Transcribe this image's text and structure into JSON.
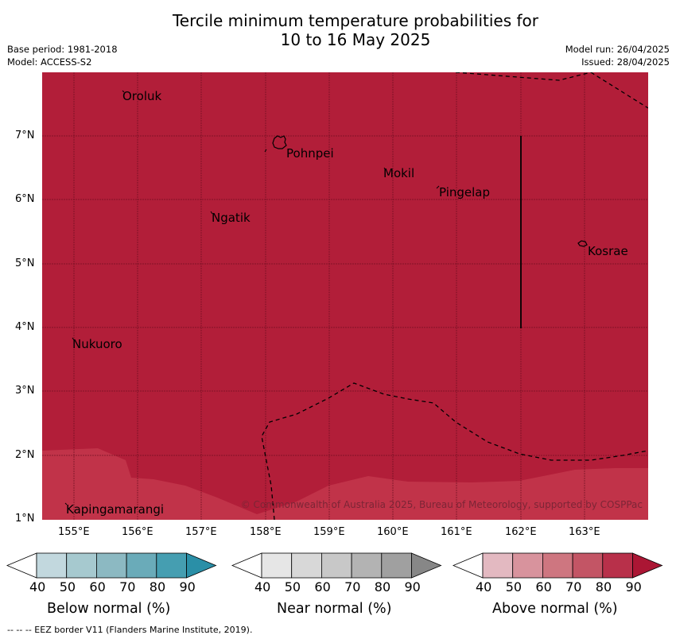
{
  "title_line1": "Tercile minimum temperature probabilities for",
  "title_line2": "10 to 16 May 2025",
  "meta": {
    "base_period": "Base period: 1981-2018",
    "model": "Model: ACCESS-S2",
    "model_run": "Model run: 26/04/2025",
    "issued": "Issued: 28/04/2025"
  },
  "map": {
    "lon_range": [
      154.5,
      164.0
    ],
    "lat_range": [
      1.0,
      8.0
    ],
    "grid": true,
    "fill_color": "#b21e39",
    "light_fill_color": "#c13349",
    "islands": [
      "Oroluk",
      "Pohnpei",
      "Mokil",
      "Pingelap",
      "Ngatik",
      "Kosrae",
      "Nukuoro",
      "Kapingamarangi"
    ],
    "lat_ticks": [
      "7°N",
      "6°N",
      "5°N",
      "4°N",
      "3°N",
      "2°N",
      "1°N"
    ],
    "lon_ticks": [
      "155°E",
      "156°E",
      "157°E",
      "158°E",
      "159°E",
      "160°E",
      "161°E",
      "162°E",
      "163°E"
    ],
    "copyright": "© Commonwealth of Australia 2025, Bureau of Meteorology, supported by COSPPac"
  },
  "legend": {
    "tick_labels": [
      "40",
      "50",
      "60",
      "70",
      "80",
      "90"
    ],
    "bars": [
      {
        "title": "Below normal (%)",
        "colors": [
          "#ffffff",
          "#c2d8de",
          "#a6c9cf",
          "#8cb9c2",
          "#6aabb9",
          "#459eb1",
          "#2a8fa7"
        ]
      },
      {
        "title": "Near normal (%)",
        "colors": [
          "#ffffff",
          "#e6e6e6",
          "#d8d8d8",
          "#c8c8c8",
          "#b3b3b3",
          "#a0a0a0",
          "#878787"
        ]
      },
      {
        "title": "Above normal (%)",
        "colors": [
          "#ffffff",
          "#e3b9c1",
          "#d8939d",
          "#ce7680",
          "#c35565",
          "#b8304a",
          "#ab1634"
        ]
      }
    ]
  },
  "footer": "--  --  -- EEZ border V11 (Flanders Marine Institute, 2019)."
}
